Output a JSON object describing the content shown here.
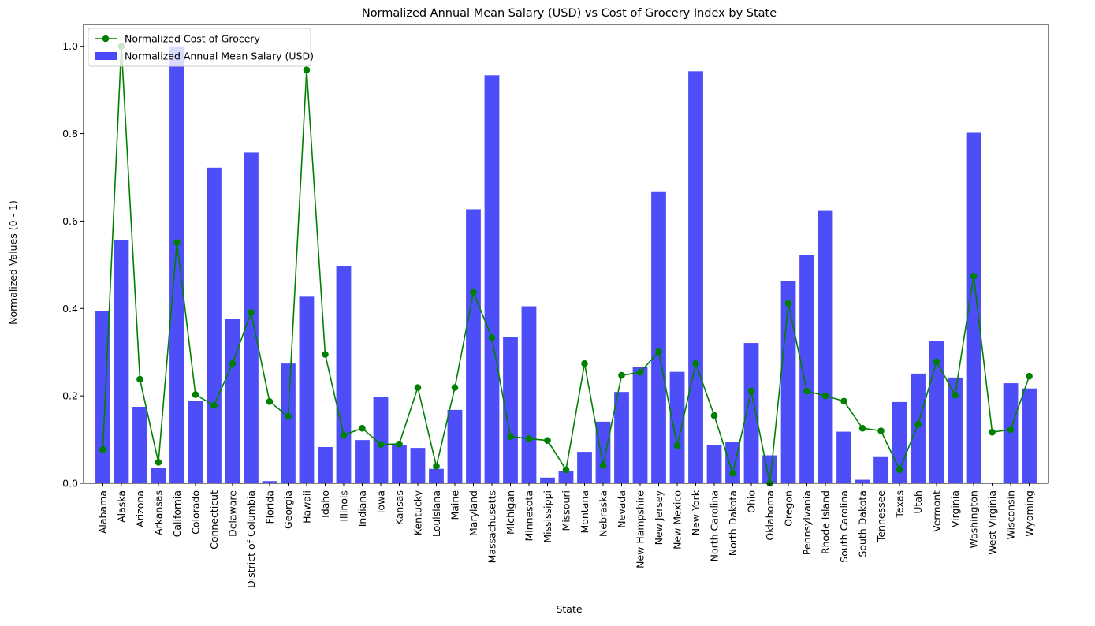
{
  "chart_data": {
    "type": "bar+line",
    "title": "Normalized Annual Mean Salary (USD) vs Cost of Grocery Index by State",
    "xlabel": "State",
    "ylabel": "Normalized Values (0 - 1)",
    "ylim": [
      0,
      1.05
    ],
    "yticks": [
      "0.0",
      "0.2",
      "0.4",
      "0.6",
      "0.8",
      "1.0"
    ],
    "legend_position": "upper-left",
    "categories": [
      "Alabama",
      "Alaska",
      "Arizona",
      "Arkansas",
      "California",
      "Colorado",
      "Connecticut",
      "Delaware",
      "District of Columbia",
      "Florida",
      "Georgia",
      "Hawaii",
      "Idaho",
      "Illinois",
      "Indiana",
      "Iowa",
      "Kansas",
      "Kentucky",
      "Louisiana",
      "Maine",
      "Maryland",
      "Massachusetts",
      "Michigan",
      "Minnesota",
      "Mississippi",
      "Missouri",
      "Montana",
      "Nebraska",
      "Nevada",
      "New Hampshire",
      "New Jersey",
      "New Mexico",
      "New York",
      "North Carolina",
      "North Dakota",
      "Ohio",
      "Oklahoma",
      "Oregon",
      "Pennsylvania",
      "Rhode Island",
      "South Carolina",
      "South Dakota",
      "Tennessee",
      "Texas",
      "Utah",
      "Vermont",
      "Virginia",
      "Washington",
      "West Virginia",
      "Wisconsin",
      "Wyoming"
    ],
    "series": [
      {
        "name": "Normalized Annual Mean Salary (USD)",
        "kind": "bar",
        "color": "#4a4af9",
        "values": [
          0.395,
          0.557,
          0.175,
          0.035,
          1.0,
          0.188,
          0.722,
          0.377,
          0.757,
          0.005,
          0.274,
          0.427,
          0.083,
          0.497,
          0.099,
          0.198,
          0.088,
          0.081,
          0.033,
          0.168,
          0.627,
          0.934,
          0.335,
          0.405,
          0.013,
          0.028,
          0.072,
          0.141,
          0.209,
          0.266,
          0.668,
          0.255,
          0.943,
          0.088,
          0.094,
          0.321,
          0.064,
          0.463,
          0.522,
          0.625,
          0.118,
          0.008,
          0.06,
          0.186,
          0.251,
          0.325,
          0.242,
          0.802,
          0.0,
          0.229,
          0.217
        ]
      },
      {
        "name": "Normalized Cost of Grocery",
        "kind": "line",
        "color": "#008000",
        "values": [
          0.077,
          1.0,
          0.238,
          0.048,
          0.551,
          0.203,
          0.178,
          0.274,
          0.391,
          0.187,
          0.153,
          0.946,
          0.295,
          0.11,
          0.126,
          0.089,
          0.09,
          0.219,
          0.039,
          0.219,
          0.437,
          0.333,
          0.107,
          0.102,
          0.098,
          0.031,
          0.274,
          0.041,
          0.247,
          0.254,
          0.301,
          0.086,
          0.274,
          0.155,
          0.023,
          0.211,
          0.0,
          0.412,
          0.211,
          0.2,
          0.188,
          0.126,
          0.12,
          0.031,
          0.135,
          0.278,
          0.202,
          0.474,
          0.117,
          0.123,
          0.245
        ]
      }
    ]
  }
}
